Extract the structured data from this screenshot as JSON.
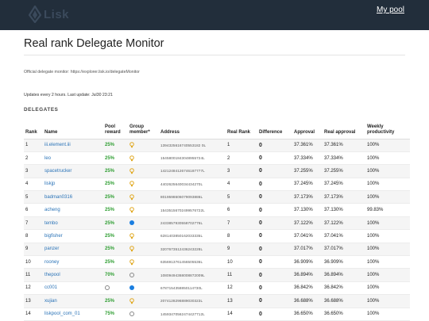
{
  "header": {
    "logo_text": "Lisk",
    "nav_link": "My pool"
  },
  "page": {
    "title": "Real rank Delegate Monitor",
    "monitor_note": "Official delegate monitor: https://explorer.lisk.io/delegateMonitor",
    "update_note": "Updates every 2 hours. Last update: Jul30 23:21",
    "section_label": "DELEGATES"
  },
  "table": {
    "columns": [
      "Rank",
      "Name",
      "Pool reward",
      "Group member*",
      "Address",
      "Real Rank",
      "Difference",
      "Approval",
      "Real approval",
      "Weekly productivity"
    ],
    "rows": [
      {
        "rank": "1",
        "name": "iii.element.iii",
        "reward": "25%",
        "member": "bulb",
        "address": "1394325616740553182 0L",
        "real_rank": "1",
        "difference": "0",
        "approval": "37.361%",
        "real_approval": "37.361%",
        "productivity": "100%"
      },
      {
        "rank": "2",
        "name": "leo",
        "reward": "25%",
        "member": "bulb",
        "address": "15458001843048955724L",
        "real_rank": "2",
        "difference": "0",
        "approval": "37.334%",
        "real_approval": "37.334%",
        "productivity": "100%"
      },
      {
        "rank": "3",
        "name": "spacetrucker",
        "reward": "25%",
        "member": "bulb",
        "address": "14212484126746187777L",
        "real_rank": "3",
        "difference": "0",
        "approval": "37.255%",
        "real_approval": "37.255%",
        "productivity": "100%"
      },
      {
        "rank": "4",
        "name": "liskjp",
        "reward": "25%",
        "member": "bulb",
        "address": "4402625640034434270L",
        "real_rank": "4",
        "difference": "0",
        "approval": "37.245%",
        "real_approval": "37.245%",
        "productivity": "100%"
      },
      {
        "rank": "5",
        "name": "badman0316",
        "reward": "25%",
        "member": "bulb",
        "address": "8019598606079093886L",
        "real_rank": "5",
        "difference": "0",
        "approval": "37.173%",
        "real_approval": "37.173%",
        "productivity": "100%"
      },
      {
        "rank": "6",
        "name": "acheng",
        "reward": "25%",
        "member": "bulb",
        "address": "15435156702499576722L",
        "real_rank": "6",
        "difference": "0",
        "approval": "37.130%",
        "real_approval": "37.130%",
        "productivity": "99.83%"
      },
      {
        "rank": "7",
        "name": "tembo",
        "reward": "25%",
        "member": "member",
        "address": "2433857930558702776L",
        "real_rank": "7",
        "difference": "0",
        "approval": "37.122%",
        "real_approval": "37.122%",
        "productivity": "100%"
      },
      {
        "rank": "8",
        "name": "bigfisher",
        "reward": "25%",
        "member": "bulb",
        "address": "6281403850162033335L",
        "real_rank": "8",
        "difference": "0",
        "approval": "37.041%",
        "real_approval": "37.041%",
        "productivity": "100%"
      },
      {
        "rank": "9",
        "name": "panzer",
        "reward": "25%",
        "member": "bulb",
        "address": "3207673512436243228L",
        "real_rank": "9",
        "difference": "0",
        "approval": "37.017%",
        "real_approval": "37.017%",
        "productivity": "100%"
      },
      {
        "rank": "10",
        "name": "rooney",
        "reward": "25%",
        "member": "bulb",
        "address": "6356913761456505536L",
        "real_rank": "10",
        "difference": "0",
        "approval": "36.909%",
        "real_approval": "36.909%",
        "productivity": "100%"
      },
      {
        "rank": "11",
        "name": "thepool",
        "reward": "70%",
        "member": "empty",
        "address": "10809494368008872009L",
        "real_rank": "11",
        "difference": "0",
        "approval": "36.894%",
        "real_approval": "36.894%",
        "productivity": "100%"
      },
      {
        "rank": "12",
        "name": "cc001",
        "reward": "empty",
        "member": "member",
        "address": "6787154358850114730L",
        "real_rank": "12",
        "difference": "0",
        "approval": "36.842%",
        "real_approval": "36.842%",
        "productivity": "100%"
      },
      {
        "rank": "13",
        "name": "xujian",
        "reward": "25%",
        "member": "bulb",
        "address": "2074128296889030323L",
        "real_rank": "13",
        "difference": "0",
        "approval": "36.688%",
        "real_approval": "36.688%",
        "productivity": "100%"
      },
      {
        "rank": "14",
        "name": "liskpool_com_01",
        "reward": "75%",
        "member": "empty",
        "address": "14593470562474427712L",
        "real_rank": "14",
        "difference": "0",
        "approval": "36.650%",
        "real_approval": "36.650%",
        "productivity": "100%"
      }
    ]
  },
  "colors": {
    "topbar": "#222e3b",
    "link": "#2a73b7",
    "reward": "#2f9e32",
    "member_dot": "#1a7ee0",
    "bulb": "#e0a820"
  },
  "icons": {
    "bulb": "lightbulb-icon",
    "member": "member-dot-icon",
    "empty": "empty-circle-icon",
    "logo": "lisk-logo-icon"
  }
}
